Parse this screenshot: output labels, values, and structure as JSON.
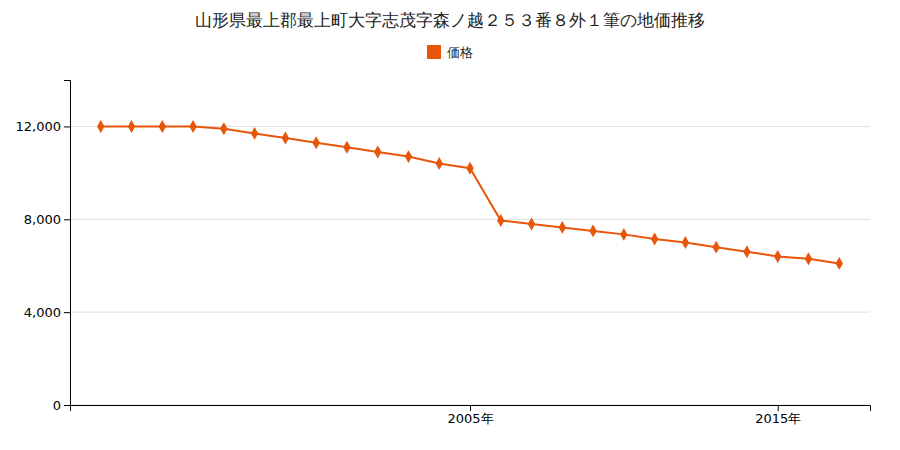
{
  "chart_data": {
    "type": "line",
    "title": "山形県最上郡最上町大字志茂字森ノ越２５３番８外１筆の地価推移",
    "x": [
      1993,
      1994,
      1995,
      1996,
      1997,
      1998,
      1999,
      2000,
      2001,
      2002,
      2003,
      2004,
      2005,
      2006,
      2007,
      2008,
      2009,
      2010,
      2011,
      2012,
      2013,
      2014,
      2015,
      2016,
      2017
    ],
    "series": [
      {
        "name": "価格",
        "color": "#e8560a",
        "marker": "diamond",
        "values": [
          12000,
          12000,
          12000,
          12000,
          11900,
          11700,
          11500,
          11300,
          11100,
          10900,
          10700,
          10400,
          10200,
          7950,
          7800,
          7650,
          7500,
          7350,
          7150,
          7000,
          6800,
          6600,
          6400,
          6300,
          6100
        ]
      }
    ],
    "xlim": [
      1992,
      2018
    ],
    "xticks": [
      {
        "value": 2005,
        "label": "2005年"
      },
      {
        "value": 2015,
        "label": "2015年"
      }
    ],
    "ylim": [
      0,
      14000
    ],
    "yticks": [
      0,
      {
        "value": 4000,
        "label": "4,000"
      },
      {
        "value": 8000,
        "label": "8,000"
      },
      {
        "value": 12000,
        "label": "12,000"
      }
    ],
    "grid": "y",
    "legend": "top"
  }
}
